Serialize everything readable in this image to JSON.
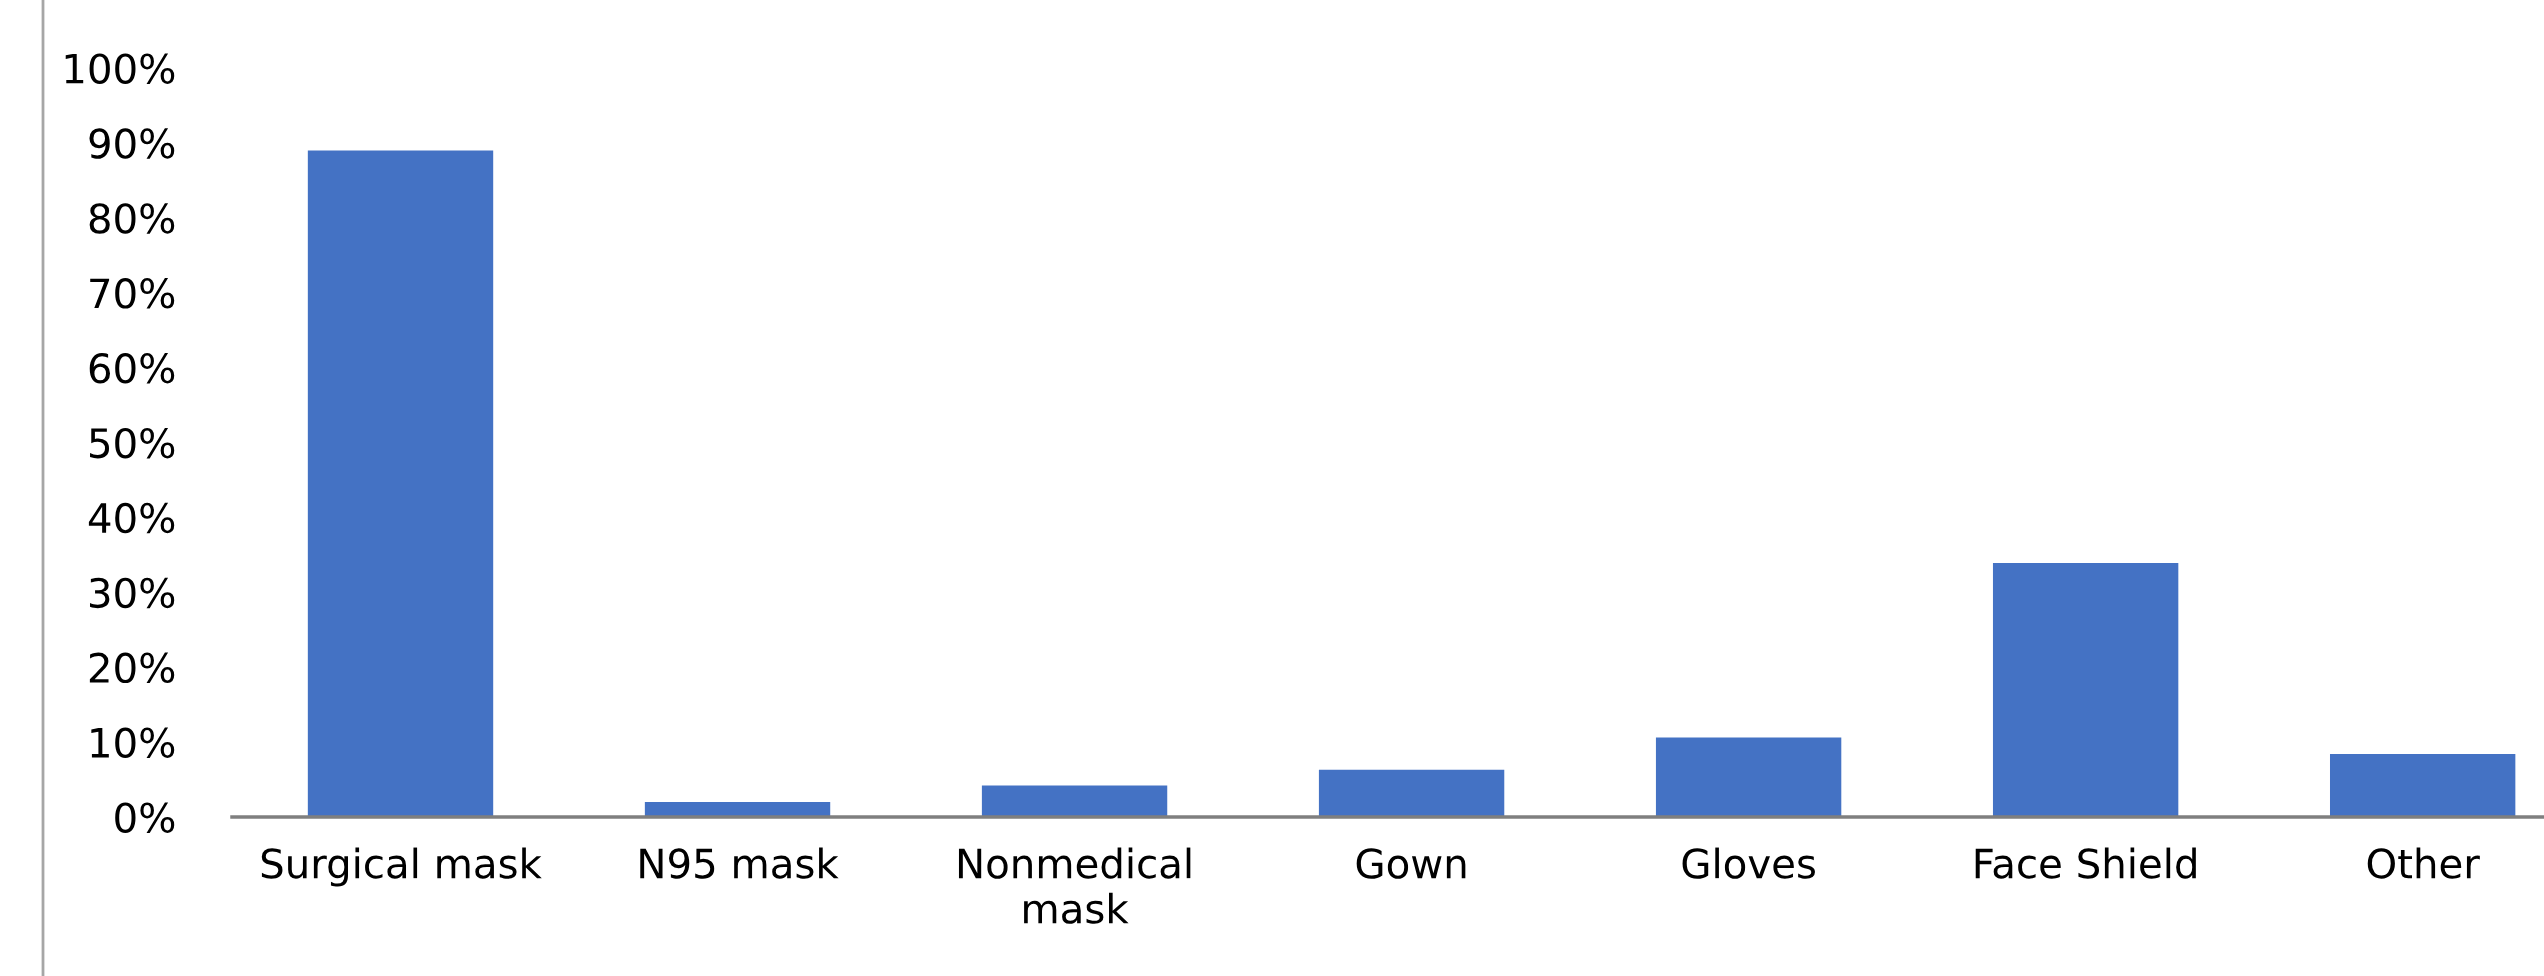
{
  "chart_data": {
    "type": "bar",
    "categories": [
      "Surgical mask",
      "N95 mask",
      "Nonmedical\nmask",
      "Gown",
      "Gloves",
      "Face Shield",
      "Other"
    ],
    "values": [
      89,
      2,
      4.2,
      6.3,
      10.6,
      33.9,
      8.4
    ],
    "color": "#4472c4",
    "ylim": [
      0,
      100
    ],
    "yticks": [
      {
        "value": 0,
        "label": "0%"
      },
      {
        "value": 10,
        "label": "10%"
      },
      {
        "value": 20,
        "label": "20%"
      },
      {
        "value": 30,
        "label": "30%"
      },
      {
        "value": 40,
        "label": "40%"
      },
      {
        "value": 50,
        "label": "50%"
      },
      {
        "value": 60,
        "label": "60%"
      },
      {
        "value": 70,
        "label": "70%"
      },
      {
        "value": 80,
        "label": "80%"
      },
      {
        "value": 90,
        "label": "90%"
      },
      {
        "value": 100,
        "label": "100%"
      }
    ],
    "grid": false,
    "legend": false
  }
}
